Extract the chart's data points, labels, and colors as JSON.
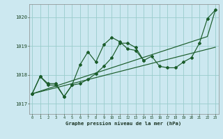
{
  "title": "Graphe pression niveau de la mer (hPa)",
  "background_color": "#cce8f0",
  "grid_color": "#99cccc",
  "line_color": "#1a5c2a",
  "x_ticks": [
    0,
    1,
    2,
    3,
    4,
    5,
    6,
    7,
    8,
    9,
    10,
    11,
    12,
    13,
    14,
    15,
    16,
    17,
    18,
    19,
    20,
    21,
    22,
    23
  ],
  "y_ticks": [
    1017,
    1018,
    1019,
    1020
  ],
  "ylim": [
    1016.65,
    1020.45
  ],
  "xlim": [
    -0.4,
    23.4
  ],
  "line_straight1": [
    1017.35,
    1017.42,
    1017.49,
    1017.56,
    1017.63,
    1017.7,
    1017.77,
    1017.84,
    1017.91,
    1017.98,
    1018.05,
    1018.12,
    1018.19,
    1018.26,
    1018.33,
    1018.4,
    1018.47,
    1018.54,
    1018.61,
    1018.68,
    1018.75,
    1018.82,
    1018.89,
    1018.96
  ],
  "line_straight2": [
    1017.35,
    1017.44,
    1017.53,
    1017.62,
    1017.71,
    1017.8,
    1017.89,
    1017.98,
    1018.07,
    1018.16,
    1018.25,
    1018.34,
    1018.43,
    1018.52,
    1018.61,
    1018.7,
    1018.79,
    1018.88,
    1018.97,
    1019.06,
    1019.15,
    1019.24,
    1019.33,
    1020.25
  ],
  "line_jagged1": [
    1017.35,
    1017.95,
    1017.7,
    1017.7,
    1017.25,
    1017.65,
    1017.7,
    1017.85,
    1018.05,
    1018.3,
    1018.6,
    1019.1,
    1019.1,
    1018.95,
    1018.5,
    1018.65,
    1018.3,
    1018.25,
    1018.25,
    1018.45,
    1018.6,
    1019.1,
    1019.95,
    1020.25
  ],
  "line_jagged2_x": [
    0,
    1,
    2,
    3,
    4,
    5,
    6,
    7,
    8,
    9,
    10,
    11,
    12,
    13,
    14
  ],
  "line_jagged2_y": [
    1017.35,
    1017.95,
    1017.65,
    1017.65,
    1017.25,
    1017.65,
    1018.35,
    1018.8,
    1018.45,
    1019.05,
    1019.3,
    1019.15,
    1018.9,
    1018.85,
    1018.5
  ]
}
